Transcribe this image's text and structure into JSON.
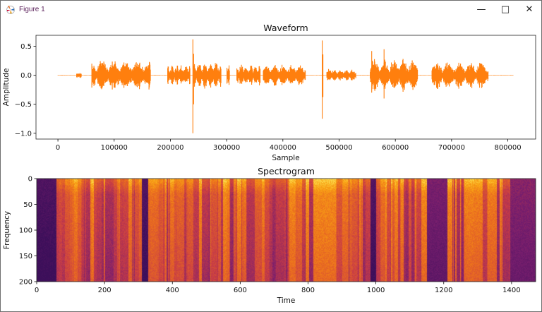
{
  "window": {
    "title": "Figure 1",
    "controls": {
      "minimize": "—",
      "maximize": "□",
      "close": "✕"
    }
  },
  "chart_data": [
    {
      "type": "line",
      "title": "Waveform",
      "xlabel": "Sample",
      "ylabel": "Amplitude",
      "xlim": [
        -39000,
        849500
      ],
      "ylim": [
        -1.1,
        0.69
      ],
      "xticks": [
        0,
        100000,
        200000,
        300000,
        400000,
        500000,
        600000,
        700000,
        800000
      ],
      "xtick_labels": [
        "0",
        "100000",
        "200000",
        "300000",
        "400000",
        "500000",
        "600000",
        "700000",
        "800000"
      ],
      "yticks": [
        0.5,
        0.0,
        -0.5,
        -1.0
      ],
      "ytick_labels": [
        "0.5",
        "0.0",
        "−0.5",
        "−1.0"
      ],
      "color": "#ff7f0e",
      "x_range": [
        0,
        810000
      ],
      "envelope_segments": [
        {
          "start": 33000,
          "end": 42000,
          "amp": 0.05
        },
        {
          "start": 60000,
          "end": 165000,
          "amp": 0.28
        },
        {
          "start": 195000,
          "end": 235000,
          "amp": 0.2
        },
        {
          "start": 240000,
          "end": 290000,
          "amp": 0.25
        },
        {
          "start": 300000,
          "end": 305000,
          "amp": 0.22
        },
        {
          "start": 318000,
          "end": 360000,
          "amp": 0.2
        },
        {
          "start": 365000,
          "end": 440000,
          "amp": 0.2
        },
        {
          "start": 478000,
          "end": 530000,
          "amp": 0.12
        },
        {
          "start": 555000,
          "end": 640000,
          "amp": 0.3
        },
        {
          "start": 665000,
          "end": 765000,
          "amp": 0.25
        }
      ],
      "spikes": [
        {
          "x": 240000,
          "max": 0.62,
          "min": -1.0
        },
        {
          "x": 470000,
          "max": 0.6,
          "min": -0.75
        },
        {
          "x": 580000,
          "max": 0.45,
          "min": -0.4
        },
        {
          "x": 558000,
          "max": 0.42,
          "min": -0.3
        }
      ]
    },
    {
      "type": "heatmap",
      "title": "Spectrogram",
      "xlabel": "Time",
      "ylabel": "Frequency",
      "xlim": [
        0,
        1471
      ],
      "ylim": [
        200,
        0
      ],
      "xticks": [
        0,
        200,
        400,
        600,
        800,
        1000,
        1200,
        1400
      ],
      "xtick_labels": [
        "0",
        "200",
        "400",
        "600",
        "800",
        "1000",
        "1200",
        "1400"
      ],
      "yticks": [
        0,
        50,
        100,
        150,
        200
      ],
      "ytick_labels": [
        "0",
        "50",
        "100",
        "150",
        "200"
      ],
      "colormap": "inferno-like",
      "low_energy_regions": [
        {
          "start": 0,
          "end": 58,
          "level": 0.1
        },
        {
          "start": 310,
          "end": 328,
          "level": 0.12
        },
        {
          "start": 983,
          "end": 1000,
          "level": 0.12
        },
        {
          "start": 1150,
          "end": 1210,
          "level": 0.3
        },
        {
          "start": 1395,
          "end": 1471,
          "level": 0.35
        }
      ]
    }
  ]
}
